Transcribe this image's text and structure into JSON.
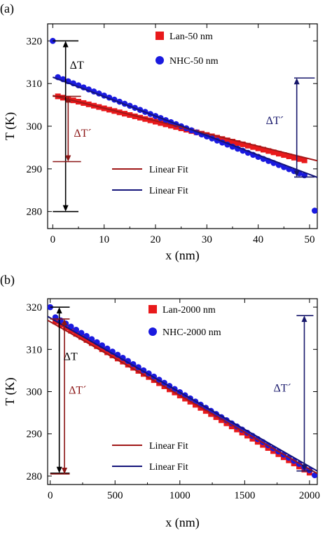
{
  "colors": {
    "lan": "#e8191b",
    "nhc": "#1a1adf",
    "fit_lan": "#a01818",
    "fit_nhc": "#14147a",
    "arrow_black": "#000000",
    "arrow_dark_red": "#8b1515",
    "arrow_navy": "#17176b"
  },
  "chart_data": [
    {
      "type": "scatter",
      "panel_label": "(a)",
      "xlabel": "x (nm)",
      "ylabel": "T (K)",
      "xlim": [
        -1,
        51.5
      ],
      "ylim": [
        276,
        324
      ],
      "xticks": [
        0,
        10,
        20,
        30,
        40,
        50
      ],
      "yticks": [
        280,
        290,
        300,
        310,
        320
      ],
      "grid": false,
      "legend_position": "top-center",
      "series": [
        {
          "name": "Lan-50 nm",
          "marker": "square",
          "color": "#e8191b",
          "x_start": 1,
          "x_end": 49,
          "count": 49,
          "y_fit": [
            307.0,
            292.0
          ]
        },
        {
          "name": "NHC-50 nm",
          "marker": "circle",
          "color": "#1a1adf",
          "x_start": 1,
          "x_end": 49,
          "count": 49,
          "y_fit": [
            311.5,
            288.5
          ],
          "extra_points": [
            [
              0,
              320
            ],
            [
              51,
              280.2
            ]
          ]
        }
      ],
      "fit_lines": [
        {
          "name": "Linear Fit",
          "color": "#a01818",
          "x": [
            0,
            51.5
          ],
          "y": [
            307.2,
            291.9
          ]
        },
        {
          "name": "Linear Fit",
          "color": "#14147a",
          "x": [
            0,
            51.5
          ],
          "y": [
            311.5,
            288.0
          ]
        }
      ],
      "annotations": [
        {
          "text": "ΔT",
          "color": "#000000",
          "x": 2.5,
          "y_from": 280,
          "y_to": 320,
          "cap_x": [
            0,
            5
          ]
        },
        {
          "text": "ΔT´",
          "color": "#8b1515",
          "x": 3.0,
          "y_from": 291.7,
          "y_to": 307.0,
          "cap_x": [
            0,
            5.5
          ]
        },
        {
          "text": "ΔT´",
          "color": "#17176b",
          "x": 47.5,
          "y_from": 288.1,
          "y_to": 311.3,
          "cap_x": [
            47,
            51
          ]
        }
      ]
    },
    {
      "type": "scatter",
      "panel_label": "(b)",
      "xlabel": "x (nm)",
      "ylabel": "T (K)",
      "xlim": [
        -20,
        2060
      ],
      "ylim": [
        278,
        322
      ],
      "xticks": [
        0,
        500,
        1000,
        1500,
        2000
      ],
      "yticks": [
        280,
        290,
        300,
        310,
        320
      ],
      "grid": false,
      "legend_position": "top-center",
      "series": [
        {
          "name": "Lan-2000 nm",
          "marker": "square",
          "color": "#e8191b",
          "x_start": 40,
          "x_end": 2000,
          "count": 50,
          "y_fit": [
            316.6,
            280.8
          ]
        },
        {
          "name": "NHC-2000 nm",
          "marker": "circle",
          "color": "#1a1adf",
          "x_start": 40,
          "x_end": 2000,
          "count": 50,
          "y_fit": [
            317.6,
            281.4
          ],
          "extra_points": [
            [
              0,
              320
            ],
            [
              2040,
              280.2
            ]
          ]
        }
      ],
      "fit_lines": [
        {
          "name": "Linear Fit",
          "color": "#a01818",
          "x": [
            -20,
            2060
          ],
          "y": [
            316.9,
            280.6
          ]
        },
        {
          "name": "Linear Fit",
          "color": "#14147a",
          "x": [
            -20,
            2060
          ],
          "y": [
            317.8,
            281.2
          ]
        }
      ],
      "annotations": [
        {
          "text": "ΔT",
          "color": "#000000",
          "x": 70,
          "y_from": 280.7,
          "y_to": 320,
          "cap_x": [
            0,
            150
          ]
        },
        {
          "text": "ΔT´",
          "color": "#8b1515",
          "x": 110,
          "y_from": 280.5,
          "y_to": 317.2,
          "cap_x": [
            0,
            150
          ]
        },
        {
          "text": "ΔT´",
          "color": "#17176b",
          "x": 1960,
          "y_from": 281.2,
          "y_to": 318.0,
          "cap_x": [
            1900,
            2030
          ]
        }
      ]
    }
  ]
}
